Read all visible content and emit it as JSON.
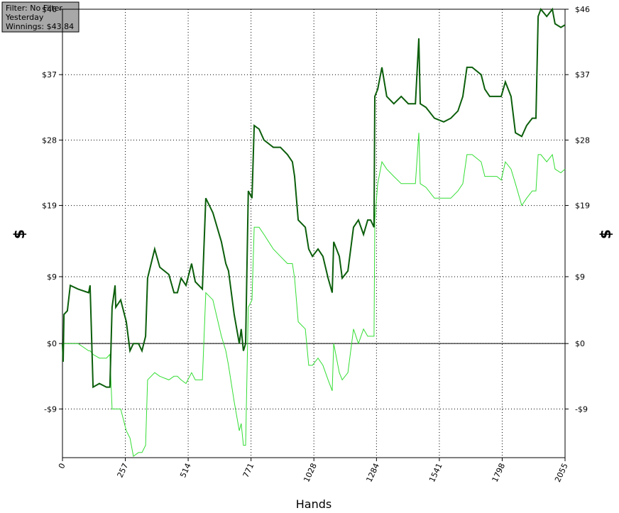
{
  "chart_data": {
    "type": "line",
    "info": [
      "Filter: No Filter",
      "Yesterday",
      "Winnings: $43.84"
    ],
    "xlabel": "Hands",
    "ylabel": "$",
    "xlim": [
      0,
      2055
    ],
    "ylim": [
      -15.7,
      46
    ],
    "xticks": [
      0,
      257,
      514,
      771,
      1028,
      1284,
      1541,
      1798,
      2055
    ],
    "yticks": [
      {
        "value": -9,
        "label": "-$9"
      },
      {
        "value": 0,
        "label": "$0"
      },
      {
        "value": 9.2,
        "label": "$9"
      },
      {
        "value": 19,
        "label": "$19"
      },
      {
        "value": 28,
        "label": "$28"
      },
      {
        "value": 37,
        "label": "$37"
      },
      {
        "value": 46,
        "label": "$46"
      }
    ],
    "grid": true,
    "x": [
      0,
      3,
      6,
      20,
      32,
      64,
      107,
      113,
      125,
      151,
      180,
      194,
      203,
      215,
      218,
      238,
      261,
      276,
      290,
      311,
      325,
      340,
      348,
      377,
      398,
      435,
      456,
      470,
      485,
      505,
      528,
      543,
      572,
      586,
      615,
      650,
      668,
      679,
      702,
      723,
      731,
      740,
      749,
      760,
      775,
      784,
      804,
      824,
      862,
      891,
      920,
      940,
      949,
      964,
      993,
      1007,
      1022,
      1045,
      1065,
      1086,
      1103,
      1109,
      1132,
      1144,
      1167,
      1190,
      1210,
      1231,
      1248,
      1260,
      1274,
      1277,
      1289,
      1306,
      1326,
      1355,
      1385,
      1414,
      1443,
      1457,
      1463,
      1486,
      1521,
      1559,
      1588,
      1617,
      1637,
      1654,
      1675,
      1712,
      1727,
      1747,
      1776,
      1794,
      1811,
      1834,
      1852,
      1878,
      1898,
      1921,
      1936,
      1945,
      1956,
      1980,
      2003,
      2014,
      2038,
      2055
    ],
    "series": [
      {
        "color": "#33dd33",
        "width": 1,
        "values": [
          0,
          -1,
          0,
          0,
          0,
          0,
          -1,
          -1,
          -1.5,
          -2,
          -2,
          -1.5,
          -9,
          -9,
          -9,
          -9,
          -12,
          -13,
          -15.5,
          -15,
          -15,
          -14,
          -5,
          -4,
          -4.5,
          -5,
          -4.5,
          -4.5,
          -5,
          -5.5,
          -4,
          -5,
          -5,
          7,
          6,
          1,
          -1,
          -3,
          -8,
          -12,
          -11,
          -14,
          -14,
          5,
          6,
          16,
          16,
          15,
          13,
          12,
          11,
          11,
          9,
          3,
          2,
          -3,
          -3,
          -2,
          -3,
          -5,
          -6.5,
          0,
          -4,
          -5,
          -4,
          2,
          0,
          2,
          1,
          1,
          1,
          17,
          22,
          25,
          24,
          23,
          22,
          22,
          22,
          29,
          22,
          21.5,
          20,
          20,
          20,
          21,
          22,
          26,
          26,
          25,
          23,
          23,
          23,
          22.5,
          25,
          24,
          22,
          19,
          20,
          21,
          21,
          26,
          26,
          25,
          26,
          24,
          23.5,
          24
        ]
      },
      {
        "color": "#0b5e0b",
        "width": 2,
        "values": [
          0,
          -2.5,
          4,
          4.5,
          8,
          7.5,
          7,
          8,
          -6,
          -5.5,
          -6,
          -6,
          5,
          8,
          5,
          6,
          3,
          -1,
          0,
          0,
          -1,
          1,
          9,
          13,
          10.5,
          9.5,
          7,
          7,
          9,
          8,
          11,
          8.5,
          7.5,
          20,
          18,
          14,
          11,
          10,
          4,
          0,
          2,
          -1,
          0,
          21,
          20,
          30,
          29.5,
          28,
          27,
          27,
          26,
          25,
          23,
          17,
          16,
          13,
          12,
          13,
          12,
          9,
          7,
          14,
          12,
          9,
          10,
          16,
          17,
          15,
          17,
          17,
          16,
          34,
          35,
          38,
          34,
          33,
          34,
          33,
          33,
          42,
          33,
          32.5,
          31,
          30.5,
          31,
          32,
          34,
          38,
          38,
          37,
          35,
          34,
          34,
          34,
          36,
          34,
          29,
          28.5,
          30,
          31,
          31,
          45,
          46,
          45,
          46,
          44,
          43.5,
          43.84
        ]
      }
    ]
  }
}
